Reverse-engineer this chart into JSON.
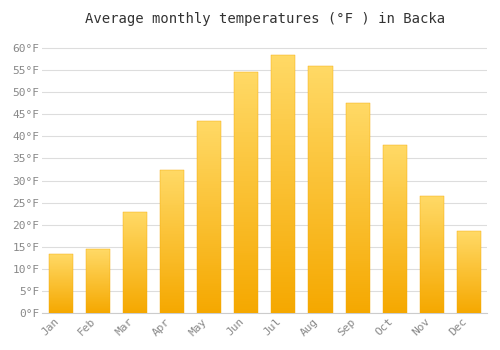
{
  "title": "Average monthly temperatures (°F ) in Backa",
  "months": [
    "Jan",
    "Feb",
    "Mar",
    "Apr",
    "May",
    "Jun",
    "Jul",
    "Aug",
    "Sep",
    "Oct",
    "Nov",
    "Dec"
  ],
  "values": [
    13.5,
    14.5,
    23.0,
    32.5,
    43.5,
    54.5,
    58.5,
    56.0,
    47.5,
    38.0,
    26.5,
    18.5
  ],
  "bar_color_bottom": "#F5A800",
  "bar_color_top": "#FFD966",
  "background_color": "#FFFFFF",
  "plot_bg_color": "#FFFFFF",
  "grid_color": "#DDDDDD",
  "text_color": "#888888",
  "border_color": "#CCCCCC",
  "ylim": [
    0,
    63
  ],
  "yticks": [
    0,
    5,
    10,
    15,
    20,
    25,
    30,
    35,
    40,
    45,
    50,
    55,
    60
  ],
  "title_fontsize": 10,
  "tick_fontsize": 8
}
